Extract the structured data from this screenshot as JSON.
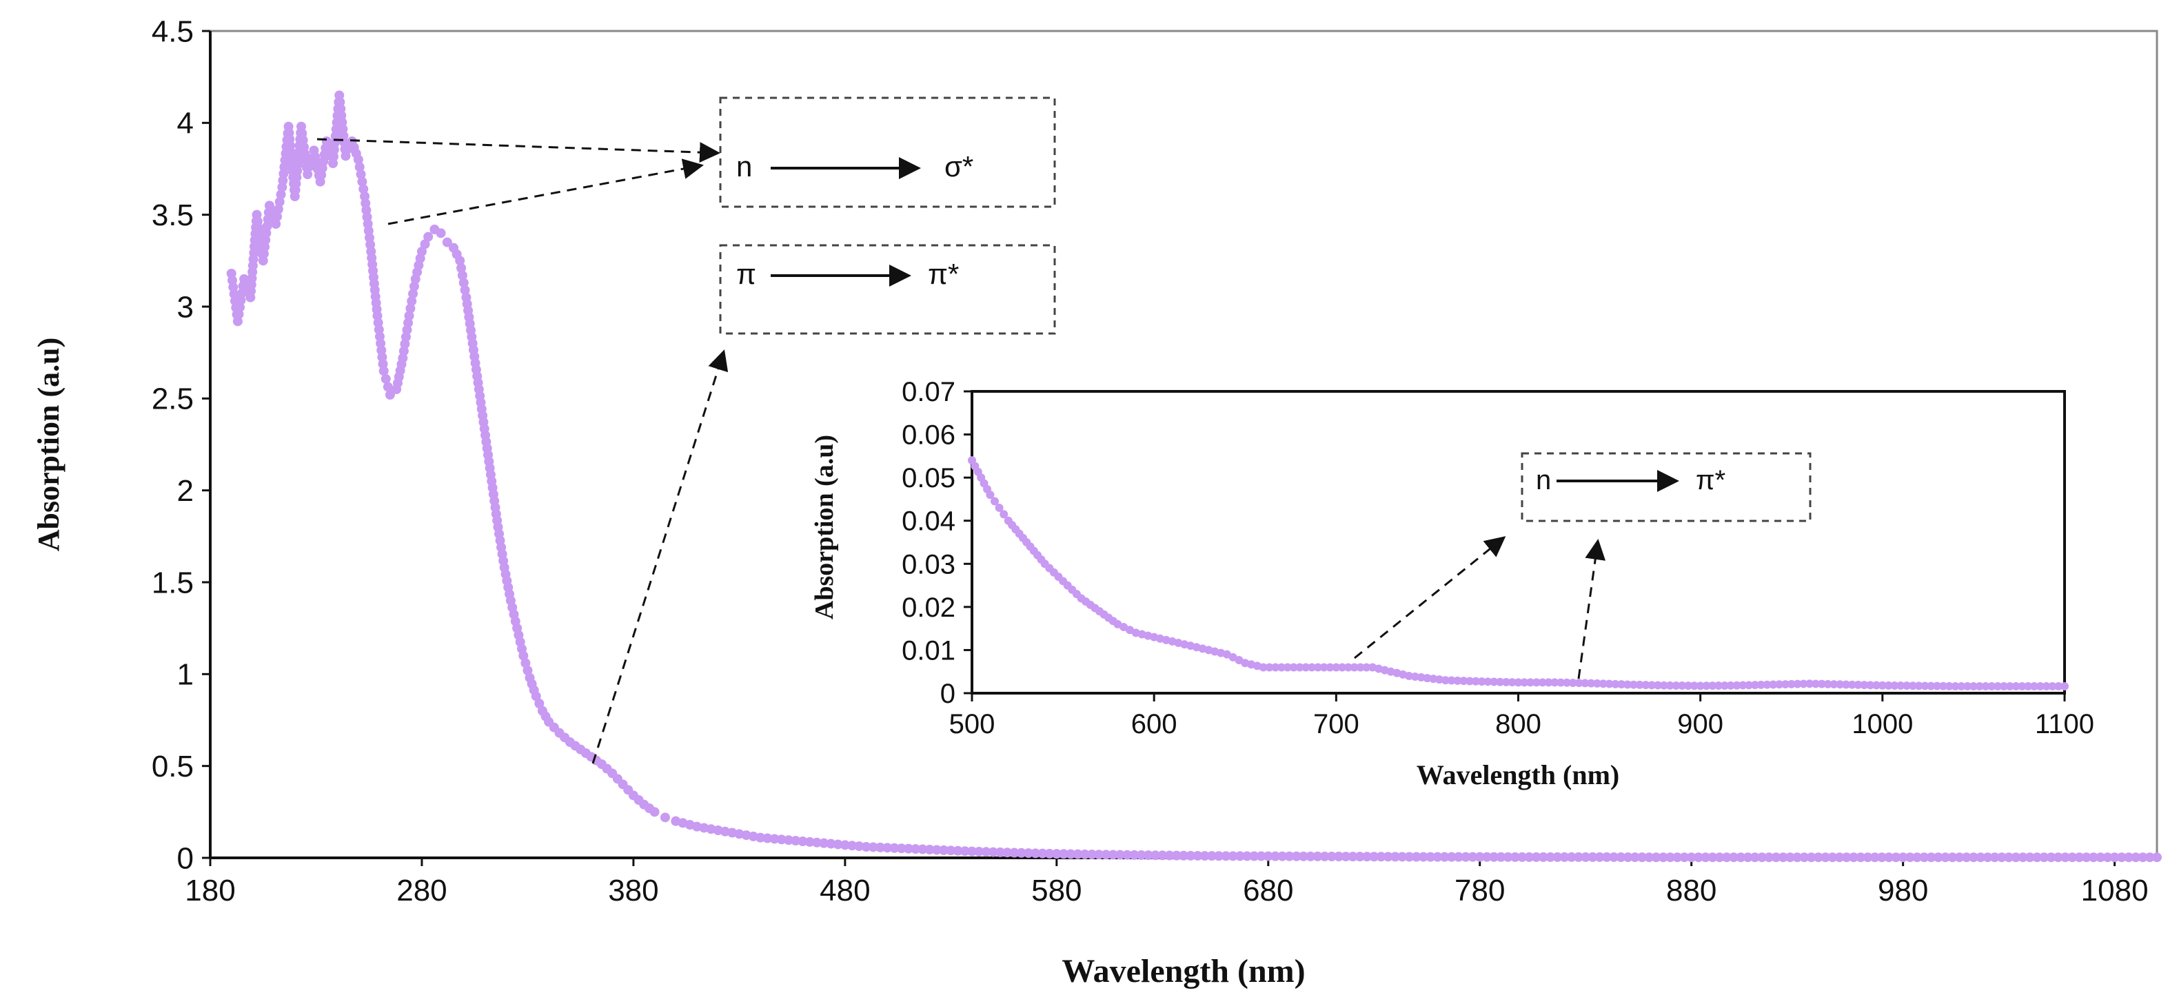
{
  "chart_data": [
    {
      "id": "main",
      "type": "scatter",
      "title": "",
      "xlabel": "Wavelength (nm)",
      "ylabel": "Absorption (a.u)",
      "xlim": [
        180,
        1100
      ],
      "ylim": [
        0,
        4.5
      ],
      "xticks": [
        180,
        280,
        380,
        480,
        580,
        680,
        780,
        880,
        980,
        1080
      ],
      "yticks": [
        0,
        0.5,
        1,
        1.5,
        2,
        2.5,
        3,
        3.5,
        4,
        4.5
      ],
      "ytick_labels": [
        "0",
        "0.5",
        "1",
        "1.5",
        "2",
        "2.5",
        "3",
        "3.5",
        "4",
        "4.5"
      ],
      "marker_color": "#c89af2",
      "series": [
        {
          "name": "Absorption",
          "points": [
            [
              190,
              3.18
            ],
            [
              193,
              2.92
            ],
            [
              196,
              3.15
            ],
            [
              199,
              3.05
            ],
            [
              202,
              3.5
            ],
            [
              205,
              3.25
            ],
            [
              208,
              3.55
            ],
            [
              211,
              3.45
            ],
            [
              214,
              3.65
            ],
            [
              217,
              3.98
            ],
            [
              220,
              3.6
            ],
            [
              223,
              3.98
            ],
            [
              226,
              3.72
            ],
            [
              229,
              3.85
            ],
            [
              232,
              3.68
            ],
            [
              235,
              3.9
            ],
            [
              238,
              3.78
            ],
            [
              241,
              4.15
            ],
            [
              244,
              3.82
            ],
            [
              247,
              3.9
            ],
            [
              250,
              3.8
            ],
            [
              253,
              3.6
            ],
            [
              256,
              3.3
            ],
            [
              259,
              2.95
            ],
            [
              262,
              2.65
            ],
            [
              265,
              2.52
            ],
            [
              268,
              2.55
            ],
            [
              271,
              2.72
            ],
            [
              274,
              2.95
            ],
            [
              277,
              3.15
            ],
            [
              280,
              3.3
            ],
            [
              283,
              3.38
            ],
            [
              286,
              3.42
            ],
            [
              289,
              3.4
            ],
            [
              292,
              3.35
            ],
            [
              295,
              3.32
            ],
            [
              298,
              3.25
            ],
            [
              301,
              3.05
            ],
            [
              304,
              2.8
            ],
            [
              307,
              2.55
            ],
            [
              310,
              2.3
            ],
            [
              313,
              2.05
            ],
            [
              316,
              1.8
            ],
            [
              319,
              1.58
            ],
            [
              322,
              1.4
            ],
            [
              325,
              1.25
            ],
            [
              328,
              1.1
            ],
            [
              331,
              0.98
            ],
            [
              334,
              0.88
            ],
            [
              337,
              0.8
            ],
            [
              340,
              0.74
            ],
            [
              345,
              0.68
            ],
            [
              350,
              0.63
            ],
            [
              355,
              0.59
            ],
            [
              360,
              0.55
            ],
            [
              365,
              0.51
            ],
            [
              370,
              0.46
            ],
            [
              375,
              0.4
            ],
            [
              380,
              0.34
            ],
            [
              385,
              0.29
            ],
            [
              390,
              0.25
            ],
            [
              395,
              0.22
            ],
            [
              400,
              0.2
            ],
            [
              410,
              0.17
            ],
            [
              420,
              0.15
            ],
            [
              430,
              0.13
            ],
            [
              440,
              0.11
            ],
            [
              450,
              0.1
            ],
            [
              460,
              0.09
            ],
            [
              470,
              0.08
            ],
            [
              480,
              0.07
            ],
            [
              490,
              0.06
            ],
            [
              500,
              0.055
            ],
            [
              520,
              0.045
            ],
            [
              540,
              0.035
            ],
            [
              560,
              0.028
            ],
            [
              580,
              0.022
            ],
            [
              600,
              0.018
            ],
            [
              620,
              0.015
            ],
            [
              640,
              0.012
            ],
            [
              660,
              0.01
            ],
            [
              680,
              0.009
            ],
            [
              700,
              0.008
            ],
            [
              720,
              0.007
            ],
            [
              740,
              0.006
            ],
            [
              760,
              0.005
            ],
            [
              780,
              0.005
            ],
            [
              800,
              0.004
            ],
            [
              820,
              0.004
            ],
            [
              840,
              0.004
            ],
            [
              860,
              0.003
            ],
            [
              880,
              0.003
            ],
            [
              900,
              0.003
            ],
            [
              920,
              0.003
            ],
            [
              940,
              0.003
            ],
            [
              960,
              0.003
            ],
            [
              980,
              0.003
            ],
            [
              1000,
              0.003
            ],
            [
              1020,
              0.003
            ],
            [
              1040,
              0.003
            ],
            [
              1060,
              0.003
            ],
            [
              1080,
              0.003
            ],
            [
              1100,
              0.003
            ]
          ]
        }
      ],
      "annotations": [
        {
          "id": "n-sigma",
          "from_label": "n",
          "to_label": "σ*",
          "arrow_sources": [
            [
              240,
              3.9
            ],
            [
              283,
              3.45
            ]
          ]
        },
        {
          "id": "pi-pi",
          "from_label": "π",
          "to_label": "π*",
          "arrow_sources": [
            [
              365,
              0.5
            ]
          ]
        }
      ]
    },
    {
      "id": "inset",
      "type": "scatter",
      "title": "",
      "xlabel": "Wavelength (nm)",
      "ylabel": "Absorption (a.u)",
      "xlim": [
        500,
        1100
      ],
      "ylim": [
        0,
        0.07
      ],
      "xticks": [
        500,
        600,
        700,
        800,
        900,
        1000,
        1100
      ],
      "yticks": [
        0,
        0.01,
        0.02,
        0.03,
        0.04,
        0.05,
        0.06,
        0.07
      ],
      "ytick_labels": [
        "0",
        "0.01",
        "0.02",
        "0.03",
        "0.04",
        "0.05",
        "0.06",
        "0.07"
      ],
      "marker_color": "#c89af2",
      "series": [
        {
          "name": "Absorption (inset)",
          "points": [
            [
              500,
              0.054
            ],
            [
              505,
              0.05
            ],
            [
              510,
              0.046
            ],
            [
              515,
              0.043
            ],
            [
              520,
              0.04
            ],
            [
              530,
              0.035
            ],
            [
              540,
              0.03
            ],
            [
              550,
              0.026
            ],
            [
              560,
              0.022
            ],
            [
              570,
              0.019
            ],
            [
              580,
              0.016
            ],
            [
              590,
              0.014
            ],
            [
              600,
              0.013
            ],
            [
              610,
              0.012
            ],
            [
              620,
              0.011
            ],
            [
              630,
              0.01
            ],
            [
              640,
              0.009
            ],
            [
              650,
              0.007
            ],
            [
              660,
              0.006
            ],
            [
              670,
              0.006
            ],
            [
              680,
              0.006
            ],
            [
              690,
              0.006
            ],
            [
              700,
              0.006
            ],
            [
              710,
              0.006
            ],
            [
              720,
              0.006
            ],
            [
              730,
              0.005
            ],
            [
              740,
              0.004
            ],
            [
              750,
              0.0035
            ],
            [
              760,
              0.003
            ],
            [
              780,
              0.0027
            ],
            [
              800,
              0.0025
            ],
            [
              820,
              0.0025
            ],
            [
              840,
              0.0023
            ],
            [
              860,
              0.002
            ],
            [
              880,
              0.0018
            ],
            [
              900,
              0.0017
            ],
            [
              920,
              0.0018
            ],
            [
              940,
              0.002
            ],
            [
              960,
              0.0022
            ],
            [
              980,
              0.002
            ],
            [
              1000,
              0.0018
            ],
            [
              1020,
              0.0017
            ],
            [
              1040,
              0.0016
            ],
            [
              1060,
              0.0016
            ],
            [
              1080,
              0.0016
            ],
            [
              1100,
              0.0016
            ]
          ]
        }
      ],
      "annotations": [
        {
          "id": "n-pi",
          "from_label": "n",
          "to_label": "π*",
          "arrow_sources": [
            [
              710,
              0.007
            ],
            [
              835,
              0.003
            ]
          ]
        }
      ]
    }
  ]
}
